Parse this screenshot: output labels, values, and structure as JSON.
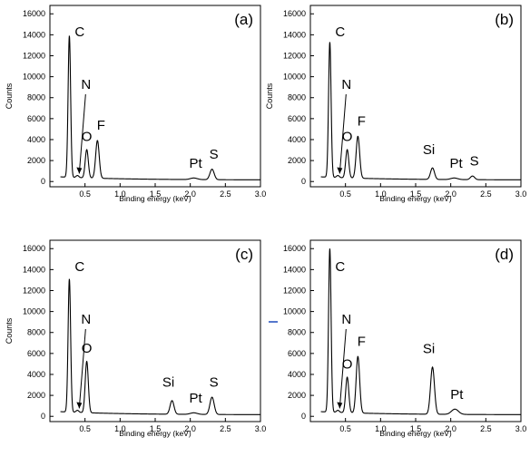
{
  "chart_data": [
    {
      "type": "line",
      "panel_label": "(a)",
      "xlabel": "Binding energy (keV)",
      "ylabel": "Counts",
      "xlim": [
        0,
        3.0
      ],
      "ylim": [
        -500,
        16800
      ],
      "x_ticks": [
        "0.5",
        "1.0",
        "1.5",
        "2.0",
        "2.5",
        "3.0"
      ],
      "y_ticks": [
        "0",
        "2000",
        "4000",
        "6000",
        "8000",
        "10000",
        "12000",
        "14000",
        "16000"
      ],
      "peaks": [
        {
          "label": "C",
          "x": 0.277,
          "y": 13800
        },
        {
          "label": "N",
          "x": 0.392,
          "y": 500
        },
        {
          "label": "O",
          "x": 0.525,
          "y": 3000
        },
        {
          "label": "F",
          "x": 0.677,
          "y": 3900
        },
        {
          "label": "Pt",
          "x": 2.05,
          "y": 450
        },
        {
          "label": "S",
          "x": 2.31,
          "y": 1300
        }
      ]
    },
    {
      "type": "line",
      "panel_label": "(b)",
      "xlabel": "Binding energy (keV)",
      "ylabel": "Counts",
      "xlim": [
        0,
        3.0
      ],
      "ylim": [
        -500,
        16800
      ],
      "x_ticks": [
        "0.5",
        "1.0",
        "1.5",
        "2.0",
        "2.5",
        "3.0"
      ],
      "y_ticks": [
        "0",
        "2000",
        "4000",
        "6000",
        "8000",
        "10000",
        "12000",
        "14000",
        "16000"
      ],
      "peaks": [
        {
          "label": "C",
          "x": 0.277,
          "y": 13200
        },
        {
          "label": "N",
          "x": 0.392,
          "y": 500
        },
        {
          "label": "O",
          "x": 0.525,
          "y": 3000
        },
        {
          "label": "F",
          "x": 0.677,
          "y": 4300
        },
        {
          "label": "Si",
          "x": 1.74,
          "y": 1400
        },
        {
          "label": "Pt",
          "x": 2.05,
          "y": 450
        },
        {
          "label": "S",
          "x": 2.31,
          "y": 650
        }
      ]
    },
    {
      "type": "line",
      "panel_label": "(c)",
      "xlabel": "Binding energy (keV)",
      "ylabel": "Counts",
      "xlim": [
        0,
        3.0
      ],
      "ylim": [
        -500,
        16800
      ],
      "x_ticks": [
        "0.5",
        "1.0",
        "1.5",
        "2.0",
        "2.5",
        "3.0"
      ],
      "y_ticks": [
        "0",
        "2000",
        "4000",
        "6000",
        "8000",
        "10000",
        "12000",
        "14000",
        "16000"
      ],
      "peaks": [
        {
          "label": "C",
          "x": 0.277,
          "y": 13000
        },
        {
          "label": "N",
          "x": 0.392,
          "y": 500
        },
        {
          "label": "O",
          "x": 0.525,
          "y": 5200
        },
        {
          "label": "Si",
          "x": 1.74,
          "y": 1600
        },
        {
          "label": "Pt",
          "x": 2.05,
          "y": 450
        },
        {
          "label": "S",
          "x": 2.31,
          "y": 1950
        }
      ]
    },
    {
      "type": "line",
      "panel_label": "(d)",
      "xlabel": "Binding energy (keV)",
      "ylabel": "",
      "xlim": [
        0,
        3.0
      ],
      "ylim": [
        -500,
        16800
      ],
      "x_ticks": [
        "0.5",
        "1.0",
        "1.5",
        "2.0",
        "2.5",
        "3.0"
      ],
      "y_ticks": [
        "0",
        "2000",
        "4000",
        "6000",
        "8000",
        "10000",
        "12000",
        "14000",
        "16000"
      ],
      "peaks": [
        {
          "label": "C",
          "x": 0.277,
          "y": 15900
        },
        {
          "label": "N",
          "x": 0.392,
          "y": 500
        },
        {
          "label": "O",
          "x": 0.525,
          "y": 3700
        },
        {
          "label": "F",
          "x": 0.677,
          "y": 5700
        },
        {
          "label": "Si",
          "x": 1.74,
          "y": 4800
        },
        {
          "label": "Pt",
          "x": 2.06,
          "y": 800
        }
      ]
    }
  ]
}
